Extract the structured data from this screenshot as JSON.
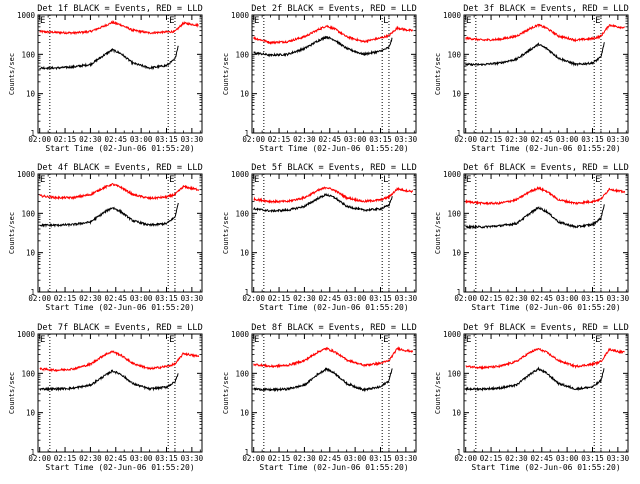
{
  "figure": {
    "background": "#ffffff",
    "axis_color": "#000000"
  },
  "chart_data": [
    {
      "type": "line",
      "title": "Det 1f BLACK = Events, RED = LLD",
      "xlabel": "Start Time (02-Jun-06 01:55:20)",
      "ylabel": "Counts/sec",
      "yscale": "log",
      "ylim": [
        1,
        1000
      ],
      "xlim": [
        "01:59",
        "03:36"
      ],
      "xticklabels": [
        "02:00",
        "02:15",
        "02:30",
        "02:45",
        "03:00",
        "03:15",
        "03:30"
      ],
      "yticklabels": [
        "1",
        "10",
        "100",
        "1000"
      ],
      "vlines": [
        "02:06",
        "03:16",
        "03:20"
      ],
      "corner_marks": [
        "E",
        "E"
      ],
      "series": [
        {
          "color": "#ff0000",
          "x": [
            "02:00",
            "02:10",
            "02:20",
            "02:30",
            "02:38",
            "02:43",
            "02:48",
            "02:55",
            "03:05",
            "03:15",
            "03:20",
            "03:25",
            "03:30",
            "03:34"
          ],
          "y": [
            380,
            360,
            350,
            380,
            520,
            650,
            560,
            410,
            350,
            370,
            380,
            620,
            580,
            550
          ]
        },
        {
          "color": "#000000",
          "x": [
            "02:00",
            "02:10",
            "02:20",
            "02:30",
            "02:38",
            "02:43",
            "02:48",
            "02:55",
            "03:05",
            "03:15",
            "03:20",
            "03:22"
          ],
          "y": [
            45,
            45,
            48,
            55,
            95,
            130,
            105,
            60,
            45,
            52,
            75,
            170
          ]
        }
      ]
    },
    {
      "type": "line",
      "title": "Det 2f BLACK = Events, RED = LLD",
      "xlabel": "Start Time (02-Jun-06 01:55:20)",
      "ylabel": "Counts/sec",
      "yscale": "log",
      "ylim": [
        1,
        1000
      ],
      "xlim": [
        "01:59",
        "03:36"
      ],
      "xticklabels": [
        "02:00",
        "02:15",
        "02:30",
        "02:45",
        "03:00",
        "03:15",
        "03:30"
      ],
      "yticklabels": [
        "1",
        "10",
        "100",
        "1000"
      ],
      "vlines": [
        "02:06",
        "03:16",
        "03:20"
      ],
      "corner_marks": [
        "E",
        "L"
      ],
      "series": [
        {
          "color": "#ff0000",
          "x": [
            "02:00",
            "02:10",
            "02:20",
            "02:30",
            "02:38",
            "02:43",
            "02:48",
            "02:55",
            "03:05",
            "03:15",
            "03:20",
            "03:25",
            "03:30",
            "03:34"
          ],
          "y": [
            260,
            200,
            210,
            280,
            420,
            530,
            440,
            280,
            210,
            260,
            300,
            470,
            420,
            400
          ]
        },
        {
          "color": "#000000",
          "x": [
            "02:00",
            "02:10",
            "02:20",
            "02:30",
            "02:38",
            "02:43",
            "02:48",
            "02:55",
            "03:05",
            "03:15",
            "03:20",
            "03:22"
          ],
          "y": [
            110,
            95,
            100,
            140,
            220,
            280,
            230,
            140,
            100,
            120,
            150,
            260
          ]
        }
      ]
    },
    {
      "type": "line",
      "title": "Det 3f BLACK = Events, RED = LLD",
      "xlabel": "Start Time (02-Jun-06 01:55:20)",
      "ylabel": "Counts/sec",
      "yscale": "log",
      "ylim": [
        1,
        1000
      ],
      "xlim": [
        "01:59",
        "03:36"
      ],
      "xticklabels": [
        "02:00",
        "02:15",
        "02:30",
        "02:45",
        "03:00",
        "03:15",
        "03:30"
      ],
      "yticklabels": [
        "1",
        "10",
        "100",
        "1000"
      ],
      "vlines": [
        "02:06",
        "03:16",
        "03:20"
      ],
      "corner_marks": [
        "E",
        "E"
      ],
      "series": [
        {
          "color": "#ff0000",
          "x": [
            "02:00",
            "02:10",
            "02:20",
            "02:30",
            "02:38",
            "02:43",
            "02:48",
            "02:55",
            "03:05",
            "03:15",
            "03:20",
            "03:25",
            "03:30",
            "03:34"
          ],
          "y": [
            260,
            230,
            240,
            290,
            450,
            560,
            460,
            290,
            230,
            250,
            290,
            560,
            500,
            480
          ]
        },
        {
          "color": "#000000",
          "x": [
            "02:00",
            "02:10",
            "02:20",
            "02:30",
            "02:38",
            "02:43",
            "02:48",
            "02:55",
            "03:05",
            "03:15",
            "03:20",
            "03:22"
          ],
          "y": [
            55,
            55,
            60,
            75,
            130,
            180,
            140,
            80,
            55,
            60,
            85,
            200
          ]
        }
      ]
    },
    {
      "type": "line",
      "title": "Det 4f BLACK = Events, RED = LLD",
      "xlabel": "Start Time (02-Jun-06 01:55:20)",
      "ylabel": "Counts/sec",
      "yscale": "log",
      "ylim": [
        1,
        1000
      ],
      "xlim": [
        "01:59",
        "03:36"
      ],
      "xticklabels": [
        "02:00",
        "02:15",
        "02:30",
        "02:45",
        "03:00",
        "03:15",
        "03:30"
      ],
      "yticklabels": [
        "1",
        "10",
        "100",
        "1000"
      ],
      "vlines": [
        "02:06",
        "03:16",
        "03:20"
      ],
      "corner_marks": [
        "E",
        "E"
      ],
      "series": [
        {
          "color": "#ff0000",
          "x": [
            "02:00",
            "02:10",
            "02:20",
            "02:30",
            "02:38",
            "02:43",
            "02:48",
            "02:55",
            "03:05",
            "03:15",
            "03:20",
            "03:25",
            "03:30",
            "03:34"
          ],
          "y": [
            280,
            250,
            250,
            300,
            450,
            550,
            460,
            300,
            240,
            260,
            300,
            480,
            430,
            400
          ]
        },
        {
          "color": "#000000",
          "x": [
            "02:00",
            "02:10",
            "02:20",
            "02:30",
            "02:38",
            "02:43",
            "02:48",
            "02:55",
            "03:05",
            "03:15",
            "03:20",
            "03:22"
          ],
          "y": [
            50,
            50,
            52,
            60,
            105,
            140,
            110,
            65,
            50,
            55,
            80,
            180
          ]
        }
      ]
    },
    {
      "type": "line",
      "title": "Det 5f BLACK = Events, RED = LLD",
      "xlabel": "Start Time (02-Jun-06 01:55:20)",
      "ylabel": "Counts/sec",
      "yscale": "log",
      "ylim": [
        1,
        1000
      ],
      "xlim": [
        "01:59",
        "03:36"
      ],
      "xticklabels": [
        "02:00",
        "02:15",
        "02:30",
        "02:45",
        "03:00",
        "03:15",
        "03:30"
      ],
      "yticklabels": [
        "1",
        "10",
        "100",
        "1000"
      ],
      "vlines": [
        "02:06",
        "03:16",
        "03:20"
      ],
      "corner_marks": [
        "E",
        "L"
      ],
      "series": [
        {
          "color": "#ff0000",
          "x": [
            "02:00",
            "02:10",
            "02:20",
            "02:30",
            "02:38",
            "02:43",
            "02:48",
            "02:55",
            "03:05",
            "03:15",
            "03:20",
            "03:25",
            "03:30",
            "03:34"
          ],
          "y": [
            230,
            200,
            200,
            250,
            380,
            460,
            380,
            250,
            200,
            220,
            260,
            420,
            380,
            360
          ]
        },
        {
          "color": "#000000",
          "x": [
            "02:00",
            "02:10",
            "02:20",
            "02:30",
            "02:38",
            "02:43",
            "02:48",
            "02:55",
            "03:05",
            "03:15",
            "03:20",
            "03:22"
          ],
          "y": [
            130,
            115,
            120,
            150,
            240,
            300,
            250,
            150,
            120,
            130,
            160,
            270
          ]
        }
      ]
    },
    {
      "type": "line",
      "title": "Det 6f BLACK = Events, RED = LLD",
      "xlabel": "Start Time (02-Jun-06 01:55:20)",
      "ylabel": "Counts/sec",
      "yscale": "log",
      "ylim": [
        1,
        1000
      ],
      "xlim": [
        "01:59",
        "03:36"
      ],
      "xticklabels": [
        "02:00",
        "02:15",
        "02:30",
        "02:45",
        "03:00",
        "03:15",
        "03:30"
      ],
      "yticklabels": [
        "1",
        "10",
        "100",
        "1000"
      ],
      "vlines": [
        "02:06",
        "03:16",
        "03:20"
      ],
      "corner_marks": [
        "E",
        "E"
      ],
      "series": [
        {
          "color": "#ff0000",
          "x": [
            "02:00",
            "02:10",
            "02:20",
            "02:30",
            "02:38",
            "02:43",
            "02:48",
            "02:55",
            "03:05",
            "03:15",
            "03:20",
            "03:25",
            "03:30",
            "03:34"
          ],
          "y": [
            200,
            180,
            180,
            220,
            360,
            440,
            360,
            220,
            180,
            200,
            230,
            420,
            370,
            350
          ]
        },
        {
          "color": "#000000",
          "x": [
            "02:00",
            "02:10",
            "02:20",
            "02:30",
            "02:38",
            "02:43",
            "02:48",
            "02:55",
            "03:05",
            "03:15",
            "03:20",
            "03:22"
          ],
          "y": [
            45,
            45,
            48,
            55,
            100,
            140,
            110,
            60,
            45,
            52,
            75,
            170
          ]
        }
      ]
    },
    {
      "type": "line",
      "title": "Det 7f BLACK = Events, RED = LLD",
      "xlabel": "Start Time (02-Jun-06 01:55:20)",
      "ylabel": "Counts/sec",
      "yscale": "log",
      "ylim": [
        1,
        1000
      ],
      "xlim": [
        "01:59",
        "03:36"
      ],
      "xticklabels": [
        "02:00",
        "02:15",
        "02:30",
        "02:45",
        "03:00",
        "03:15",
        "03:30"
      ],
      "yticklabels": [
        "1",
        "10",
        "100",
        "1000"
      ],
      "vlines": [
        "02:06",
        "03:16",
        "03:20"
      ],
      "corner_marks": [
        "E",
        "E"
      ],
      "series": [
        {
          "color": "#ff0000",
          "x": [
            "02:00",
            "02:10",
            "02:20",
            "02:30",
            "02:38",
            "02:43",
            "02:48",
            "02:55",
            "03:05",
            "03:15",
            "03:20",
            "03:25",
            "03:30",
            "03:34"
          ],
          "y": [
            130,
            120,
            130,
            170,
            290,
            360,
            290,
            180,
            130,
            150,
            170,
            320,
            290,
            270
          ]
        },
        {
          "color": "#000000",
          "x": [
            "02:00",
            "02:10",
            "02:20",
            "02:30",
            "02:38",
            "02:43",
            "02:48",
            "02:55",
            "03:05",
            "03:15",
            "03:20",
            "03:22"
          ],
          "y": [
            40,
            40,
            42,
            50,
            85,
            115,
            95,
            55,
            40,
            45,
            60,
            100
          ]
        }
      ]
    },
    {
      "type": "line",
      "title": "Det 8f BLACK = Events, RED = LLD",
      "xlabel": "Start Time (02-Jun-06 01:55:20)",
      "ylabel": "Counts/sec",
      "yscale": "log",
      "ylim": [
        1,
        1000
      ],
      "xlim": [
        "01:59",
        "03:36"
      ],
      "xticklabels": [
        "02:00",
        "02:15",
        "02:30",
        "02:45",
        "03:00",
        "03:15",
        "03:30"
      ],
      "yticklabels": [
        "1",
        "10",
        "100",
        "1000"
      ],
      "vlines": [
        "02:06",
        "03:16",
        "03:20"
      ],
      "corner_marks": [
        "E",
        "E"
      ],
      "series": [
        {
          "color": "#ff0000",
          "x": [
            "02:00",
            "02:10",
            "02:20",
            "02:30",
            "02:38",
            "02:43",
            "02:48",
            "02:55",
            "03:05",
            "03:15",
            "03:20",
            "03:25",
            "03:30",
            "03:34"
          ],
          "y": [
            170,
            150,
            160,
            210,
            350,
            430,
            350,
            220,
            160,
            180,
            210,
            430,
            380,
            360
          ]
        },
        {
          "color": "#000000",
          "x": [
            "02:00",
            "02:10",
            "02:20",
            "02:30",
            "02:38",
            "02:43",
            "02:48",
            "02:55",
            "03:05",
            "03:15",
            "03:20",
            "03:22"
          ],
          "y": [
            40,
            38,
            40,
            50,
            95,
            130,
            100,
            55,
            38,
            45,
            65,
            140
          ]
        }
      ]
    },
    {
      "type": "line",
      "title": "Det 9f BLACK = Events, RED = LLD",
      "xlabel": "Start Time (02-Jun-06 01:55:20)",
      "ylabel": "Counts/sec",
      "yscale": "log",
      "ylim": [
        1,
        1000
      ],
      "xlim": [
        "01:59",
        "03:36"
      ],
      "xticklabels": [
        "02:00",
        "02:15",
        "02:30",
        "02:45",
        "03:00",
        "03:15",
        "03:30"
      ],
      "yticklabels": [
        "1",
        "10",
        "100",
        "1000"
      ],
      "vlines": [
        "02:06",
        "03:16",
        "03:20"
      ],
      "corner_marks": [
        "E",
        "E"
      ],
      "series": [
        {
          "color": "#ff0000",
          "x": [
            "02:00",
            "02:10",
            "02:20",
            "02:30",
            "02:38",
            "02:43",
            "02:48",
            "02:55",
            "03:05",
            "03:15",
            "03:20",
            "03:25",
            "03:30",
            "03:34"
          ],
          "y": [
            150,
            140,
            150,
            200,
            340,
            420,
            340,
            210,
            150,
            170,
            200,
            410,
            360,
            340
          ]
        },
        {
          "color": "#000000",
          "x": [
            "02:00",
            "02:10",
            "02:20",
            "02:30",
            "02:38",
            "02:43",
            "02:48",
            "02:55",
            "03:05",
            "03:15",
            "03:20",
            "03:22"
          ],
          "y": [
            40,
            40,
            42,
            50,
            95,
            130,
            100,
            55,
            40,
            45,
            65,
            140
          ]
        }
      ]
    }
  ]
}
